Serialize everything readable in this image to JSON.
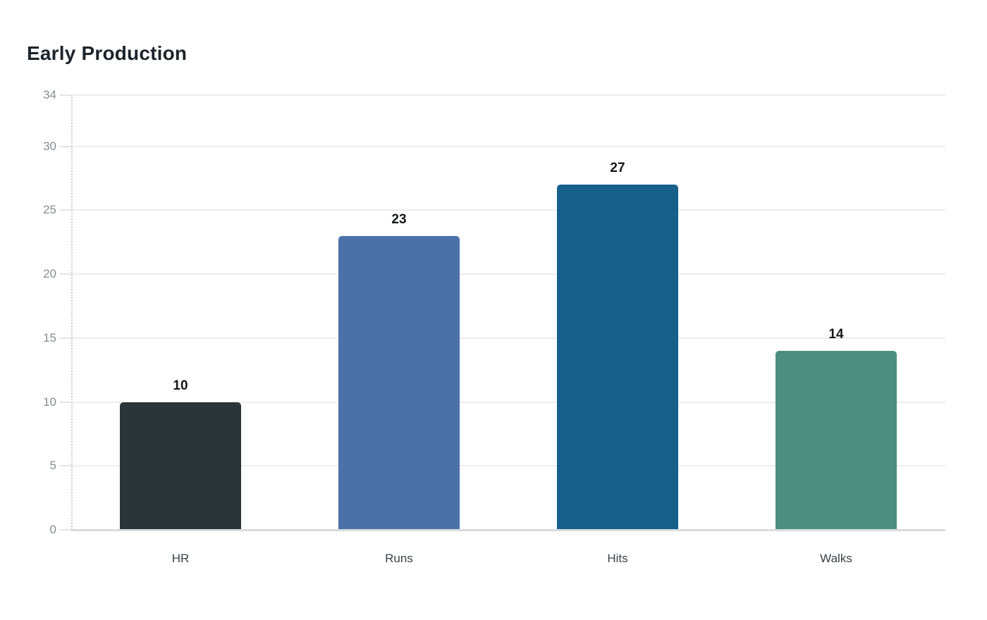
{
  "chart_data": {
    "type": "bar",
    "title": "Early Production",
    "categories": [
      "HR",
      "Runs",
      "Hits",
      "Walks"
    ],
    "values": [
      10,
      23,
      27,
      14
    ],
    "bar_colors": [
      "#2b3439",
      "#4c71a9",
      "#16608a",
      "#4d8f7e"
    ],
    "yticks": [
      0,
      5,
      10,
      15,
      20,
      25,
      30,
      34
    ],
    "ylim": [
      0,
      34
    ],
    "xlabel": "",
    "ylabel": "",
    "grid": true,
    "legend": "none",
    "value_labels_shown": true
  },
  "colors": {
    "background": "#ffffff",
    "title_text": "#1d252b",
    "tick_label_text": "#858d93",
    "category_label_text": "#39434a",
    "value_label_text": "#15181a",
    "gridline": "#ebedee",
    "axis_line": "#d9dcde",
    "tick_mark": "#e2e5e7"
  }
}
